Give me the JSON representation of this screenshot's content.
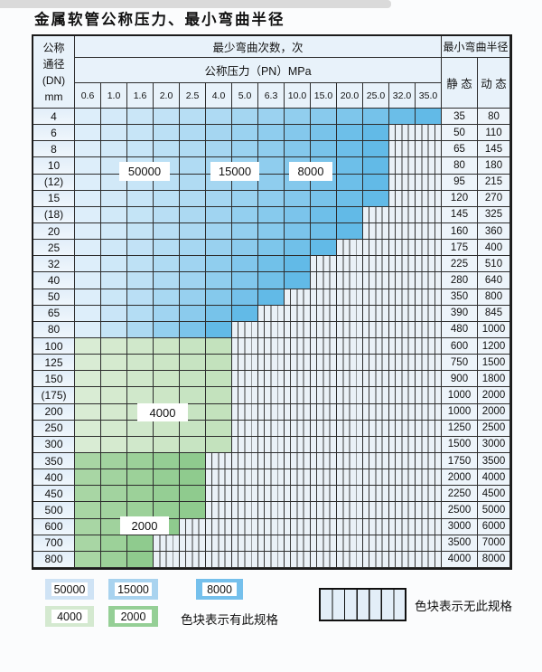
{
  "title": "金属软管公称压力、最小弯曲半径",
  "table": {
    "header": {
      "dn_lines": [
        "公称",
        "通径",
        "(DN)",
        "mm"
      ],
      "cycles_title": "最少弯曲次数，次",
      "pressure_title": "公称压力（PN）MPa",
      "pressures": [
        "0.6",
        "1.0",
        "1.6",
        "2.0",
        "2.5",
        "4.0",
        "5.0",
        "6.3",
        "10.0",
        "15.0",
        "20.0",
        "25.0",
        "32.0",
        "35.0"
      ],
      "radius_title": "最小弯曲半径",
      "static_label": "静 态",
      "dynamic_label": "动 态"
    },
    "rows": [
      {
        "dn": "4",
        "zone": "blue",
        "colored": 14,
        "static": "35",
        "dynamic": "80"
      },
      {
        "dn": "6",
        "zone": "blue",
        "colored": 12,
        "static": "50",
        "dynamic": "110"
      },
      {
        "dn": "8",
        "zone": "blue",
        "colored": 12,
        "static": "65",
        "dynamic": "145"
      },
      {
        "dn": "10",
        "zone": "blue",
        "colored": 12,
        "static": "80",
        "dynamic": "180"
      },
      {
        "dn": "(12)",
        "zone": "blue",
        "colored": 12,
        "static": "95",
        "dynamic": "215"
      },
      {
        "dn": "15",
        "zone": "blue",
        "colored": 12,
        "static": "120",
        "dynamic": "270"
      },
      {
        "dn": "(18)",
        "zone": "blue",
        "colored": 11,
        "static": "145",
        "dynamic": "325"
      },
      {
        "dn": "20",
        "zone": "blue",
        "colored": 11,
        "static": "160",
        "dynamic": "360"
      },
      {
        "dn": "25",
        "zone": "blue",
        "colored": 10,
        "static": "175",
        "dynamic": "400"
      },
      {
        "dn": "32",
        "zone": "blue",
        "colored": 9,
        "static": "225",
        "dynamic": "510"
      },
      {
        "dn": "40",
        "zone": "blue",
        "colored": 9,
        "static": "280",
        "dynamic": "640"
      },
      {
        "dn": "50",
        "zone": "blue",
        "colored": 8,
        "static": "350",
        "dynamic": "800"
      },
      {
        "dn": "65",
        "zone": "blue",
        "colored": 7,
        "static": "390",
        "dynamic": "845"
      },
      {
        "dn": "80",
        "zone": "blue",
        "colored": 6,
        "static": "480",
        "dynamic": "1000"
      },
      {
        "dn": "100",
        "zone": "green4000",
        "colored": 6,
        "static": "600",
        "dynamic": "1200"
      },
      {
        "dn": "125",
        "zone": "green4000",
        "colored": 6,
        "static": "750",
        "dynamic": "1500"
      },
      {
        "dn": "150",
        "zone": "green4000",
        "colored": 6,
        "static": "900",
        "dynamic": "1800"
      },
      {
        "dn": "(175)",
        "zone": "green4000",
        "colored": 6,
        "static": "1000",
        "dynamic": "2000"
      },
      {
        "dn": "200",
        "zone": "green4000",
        "colored": 6,
        "static": "1000",
        "dynamic": "2000"
      },
      {
        "dn": "250",
        "zone": "green4000",
        "colored": 6,
        "static": "1250",
        "dynamic": "2500"
      },
      {
        "dn": "300",
        "zone": "green4000",
        "colored": 6,
        "static": "1500",
        "dynamic": "3000"
      },
      {
        "dn": "350",
        "zone": "green2000",
        "colored": 5,
        "static": "1750",
        "dynamic": "3500"
      },
      {
        "dn": "400",
        "zone": "green2000",
        "colored": 5,
        "static": "2000",
        "dynamic": "4000"
      },
      {
        "dn": "450",
        "zone": "green2000",
        "colored": 5,
        "static": "2250",
        "dynamic": "4500"
      },
      {
        "dn": "500",
        "zone": "green2000",
        "colored": 5,
        "static": "2500",
        "dynamic": "5000"
      },
      {
        "dn": "600",
        "zone": "green2000",
        "colored": 4,
        "static": "3000",
        "dynamic": "6000"
      },
      {
        "dn": "700",
        "zone": "green2000",
        "colored": 3,
        "static": "3500",
        "dynamic": "7000"
      },
      {
        "dn": "800",
        "zone": "green2000",
        "colored": 3,
        "static": "4000",
        "dynamic": "8000"
      }
    ]
  },
  "overlays": {
    "c50000": "50000",
    "c15000": "15000",
    "c8000": "8000",
    "c4000": "4000",
    "c2000": "2000"
  },
  "legend": {
    "items": [
      {
        "value": "50000",
        "color": "#cfe3f5"
      },
      {
        "value": "15000",
        "color": "#a9d3ef"
      },
      {
        "value": "8000",
        "color": "#75c0ec"
      },
      {
        "value": "4000",
        "color": "#d4e9d0"
      },
      {
        "value": "2000",
        "color": "#95cf96"
      }
    ],
    "present_label": "色块表示有此规格",
    "absent_label": "色块表示无此规格"
  },
  "colors": {
    "zones": {
      "blue": {
        "from": "#ddeefa",
        "to": "#62bae7"
      },
      "green4000": {
        "from": "#d9ecd4",
        "to": "#c3e2bd"
      },
      "green2000": {
        "from": "#a8d6a4",
        "to": "#8fcb8e"
      }
    },
    "hatch_bg": "#eaf1f7",
    "grid_line": "#2d2d2d"
  }
}
